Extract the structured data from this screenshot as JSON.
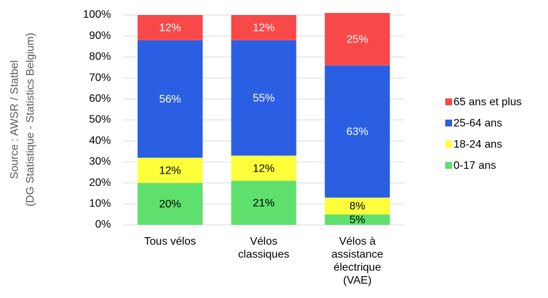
{
  "chart_data": {
    "type": "stacked_bar",
    "y_label": [
      "Source : AWSR / Statbel",
      "(DG Statistique - Statistics Belgium)"
    ],
    "categories": [
      "Tous vélos",
      "Vélos classiques",
      "Vélos à assistance électrique (VAE)"
    ],
    "series": [
      {
        "name": "0-17 ans",
        "color": "#5fe06e",
        "label_color": "#000000",
        "values": [
          20,
          21,
          5
        ],
        "value_labels": [
          "20%",
          "21%",
          "5%"
        ]
      },
      {
        "name": "18-24 ans",
        "color": "#ffff3c",
        "label_color": "#000000",
        "values": [
          12,
          12,
          8
        ],
        "value_labels": [
          "12%",
          "12%",
          "8%"
        ]
      },
      {
        "name": "25-64 ans",
        "color": "#2b5fe3",
        "label_color": "#ffffff",
        "values": [
          56,
          55,
          63
        ],
        "value_labels": [
          "56%",
          "55%",
          "63%"
        ]
      },
      {
        "name": "65 ans et plus",
        "color": "#f94848",
        "label_color": "#ffffff",
        "values": [
          12,
          12,
          25
        ],
        "value_labels": [
          "12%",
          "12%",
          "25%"
        ]
      }
    ],
    "ylim": [
      0,
      100
    ],
    "yticks": [
      {
        "value": 0,
        "label": "0%"
      },
      {
        "value": 10,
        "label": "10%"
      },
      {
        "value": 20,
        "label": "20%"
      },
      {
        "value": 30,
        "label": "30%"
      },
      {
        "value": 40,
        "label": "40%"
      },
      {
        "value": 50,
        "label": "50%"
      },
      {
        "value": 60,
        "label": "60%"
      },
      {
        "value": 70,
        "label": "70%"
      },
      {
        "value": 80,
        "label": "80%"
      },
      {
        "value": 90,
        "label": "90%"
      },
      {
        "value": 100,
        "label": "100%"
      }
    ],
    "grid": true,
    "legend": "right"
  }
}
